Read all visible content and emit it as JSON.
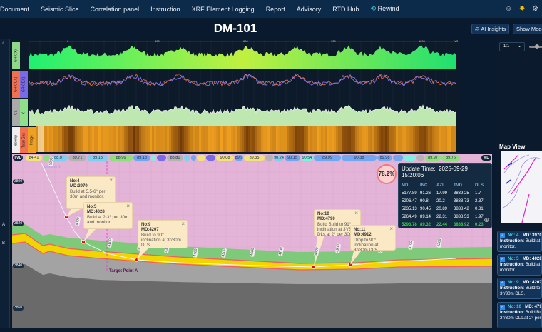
{
  "nav": {
    "items": [
      "Document",
      "Seismic Slice",
      "Correlation panel",
      "Instruction",
      "XRF Element Logging",
      "Report",
      "Advisory",
      "RTD Hub"
    ],
    "rewind": "Rewind",
    "icons": [
      "user-icon",
      "sun-icon",
      "settings-icon"
    ]
  },
  "header": {
    "title": "DM-101",
    "ai_insights": "AI Insights",
    "show_mode": "Show Mode"
  },
  "sidebar": {
    "items": [
      "A",
      "B"
    ]
  },
  "logs": {
    "ruler": [
      "0",
      "300",
      "600",
      "900",
      "1200",
      "VS"
    ],
    "tracks": [
      [
        "GR(CX)"
      ],
      [
        "GR(CUX)",
        "GR(CDX)"
      ],
      [
        "Ca",
        "K"
      ],
      [
        "ecomp",
        "Total Gas",
        "Image"
      ]
    ],
    "colors": {
      "gr": "#2cf06a",
      "gr2": "#8a7af0",
      "gr2b": "#f0704a",
      "ca": "#bfe8b0",
      "image": "#f0a020"
    }
  },
  "inclination": {
    "left_tag": "TVD",
    "right_tag": "MD",
    "segments": [
      {
        "v": "84.41",
        "c": "#f3e27a",
        "w": 24
      },
      {
        "v": "",
        "c": "#8ee07a",
        "w": 11
      },
      {
        "v": "88.07",
        "c": "#7fd0f0",
        "w": 25
      },
      {
        "v": "89.71",
        "c": "#b3b3b3",
        "w": 26
      },
      {
        "v": "89.13",
        "c": "#7fd0f0",
        "w": 31
      },
      {
        "v": "88.96",
        "c": "#8ee07a",
        "w": 34
      },
      {
        "v": "89.18",
        "c": "#6fa8f0",
        "w": 25
      },
      {
        "v": "",
        "c": "#7ff0e0",
        "w": 8
      },
      {
        "v": "",
        "c": "#7a6ae8",
        "w": 14
      },
      {
        "v": "88.81",
        "c": "#b3b3b3",
        "w": 24
      },
      {
        "v": "",
        "c": "#7fd0f0",
        "w": 10
      },
      {
        "v": "",
        "c": "#6fa8f0",
        "w": 8
      },
      {
        "v": "",
        "c": "#f3e27a",
        "w": 13
      },
      {
        "v": "",
        "c": "#7a6ae8",
        "w": 14
      },
      {
        "v": "90.08",
        "c": "#f3e27a",
        "w": 26
      },
      {
        "v": "89.9",
        "c": "#6fa8f0",
        "w": 13
      },
      {
        "v": "89.35",
        "c": "#f3e27a",
        "w": 30
      },
      {
        "v": "",
        "c": "#b3b3b3",
        "w": 12
      },
      {
        "v": "90.24",
        "c": "#7fd0f0",
        "w": 15
      },
      {
        "v": "90.15",
        "c": "#6fa8f0",
        "w": 23
      },
      {
        "v": "90.54",
        "c": "#7ff0e0",
        "w": 18
      },
      {
        "v": "89.99",
        "c": "#6fa8f0",
        "w": 39
      },
      {
        "v": "90.38",
        "c": "#6fa8f0",
        "w": 50
      },
      {
        "v": "89.98",
        "c": "#6fa8f0",
        "w": 22
      },
      {
        "v": "",
        "c": "#6fa8f0",
        "w": 15
      },
      {
        "v": "",
        "c": "#7ff0e0",
        "w": 18
      },
      {
        "v": "",
        "c": "#b3b3b3",
        "w": 12
      },
      {
        "v": "89.97",
        "c": "#8ee07a",
        "w": 23
      },
      {
        "v": "89.76",
        "c": "#8ee07a",
        "w": 27
      }
    ]
  },
  "profile": {
    "tvd_ticks": [
      "3800",
      "3820",
      "3840",
      "3860"
    ],
    "md_labels": [
      "3900",
      "4000",
      "4100",
      "4200",
      "4300",
      "4400",
      "4500",
      "4600",
      "4700",
      "4800",
      "4900",
      "5000",
      "5100",
      "5200"
    ],
    "wellplan_label": "wellplan1",
    "target": "Target Point A",
    "progress": "78.2%",
    "callouts": [
      {
        "no": "No:4",
        "md": "MD:3970",
        "text": "Build at 5.5-6° per 30m and monitor."
      },
      {
        "no": "No:5",
        "md": "MD:4028",
        "text": "Build at 2-3° per 30m and monitor."
      },
      {
        "no": "No:9",
        "md": "MD:4207",
        "text": "Build to 90° inclination at 3°/30m DLS."
      },
      {
        "no": "No:10",
        "md": "MD:4790",
        "text": "Build Build to 91° inclination at 3°/30m DLs.at 2° per 30m monitor."
      },
      {
        "no": "No:11",
        "md": "MD:4912",
        "text": "Drop to 90° inclination at 3°/30m DLS."
      }
    ]
  },
  "survey": {
    "update_label": "Update Time:",
    "update_time": "2025-09-29 15:20:06",
    "columns": [
      "MD",
      "INC",
      "AZI",
      "TVD",
      "DLS"
    ],
    "rows": [
      [
        "5177.89",
        "91.26",
        "17.99",
        "3839.25",
        "1.7"
      ],
      [
        "5206.47",
        "90.8",
        "20.2",
        "3838.73",
        "2.37"
      ],
      [
        "5235.13",
        "90.45",
        "20.89",
        "3838.42",
        "0.81"
      ],
      [
        "5264.49",
        "89.14",
        "22.31",
        "3838.53",
        "1.97"
      ],
      [
        "5293.78",
        "89.32",
        "22.44",
        "3838.92",
        "0.23"
      ]
    ]
  },
  "right_panel": {
    "scale": "1:1",
    "map_title": "Map View",
    "instruction_label": "Instruction:",
    "cards": [
      {
        "no": "No: 4",
        "md": "MD: 3970",
        "text": "Build at 5.5-6° per 30m and",
        "text2": "monitor."
      },
      {
        "no": "No: 5",
        "md": "MD: 4028",
        "text": "Build at 2-3° per 30m and",
        "text2": "monitor."
      },
      {
        "no": "No: 9",
        "md": "MD: 4207",
        "text": "Build to 90° inclination at",
        "text2": "3°/30m DLS."
      },
      {
        "no": "No: 10",
        "md": "MD: 4790",
        "text": "Build Build to 91° inclination at",
        "text2": "3°/30m DLs.at 2° per 30m"
      }
    ]
  }
}
